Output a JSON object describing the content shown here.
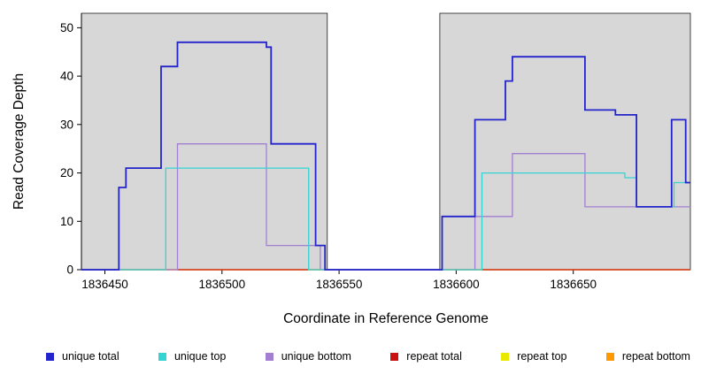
{
  "figure": {
    "background": "#ffffff",
    "plot_background": "#d7d7d7",
    "gap_background": "#ffffff"
  },
  "chart_data": {
    "type": "line",
    "step": true,
    "title": "",
    "xlabel": "Coordinate in Reference Genome",
    "ylabel": "Read Coverage Depth",
    "xlim": [
      1836440,
      1836700
    ],
    "ylim": [
      0,
      53
    ],
    "xticks": [
      1836450,
      1836500,
      1836550,
      1836600,
      1836650
    ],
    "yticks": [
      0,
      10,
      20,
      30,
      40,
      50
    ],
    "grid": false,
    "legend_position": "bottom",
    "shaded_regions": [
      {
        "from": 1836440,
        "to": 1836545,
        "color": "#d7d7d7"
      },
      {
        "from": 1836593,
        "to": 1836700,
        "color": "#d7d7d7"
      }
    ],
    "series": [
      {
        "name": "unique total",
        "color": "#2424cc",
        "points": [
          [
            1836440,
            0
          ],
          [
            1836456,
            17
          ],
          [
            1836459,
            21
          ],
          [
            1836474,
            42
          ],
          [
            1836481,
            47
          ],
          [
            1836519,
            46
          ],
          [
            1836521,
            26
          ],
          [
            1836540,
            5
          ],
          [
            1836544,
            0
          ],
          [
            1836594,
            11
          ],
          [
            1836608,
            31
          ],
          [
            1836621,
            39
          ],
          [
            1836624,
            44
          ],
          [
            1836655,
            33
          ],
          [
            1836668,
            32
          ],
          [
            1836677,
            13
          ],
          [
            1836692,
            31
          ],
          [
            1836698,
            18
          ]
        ]
      },
      {
        "name": "unique top",
        "color": "#35d4d4",
        "points": [
          [
            1836440,
            0
          ],
          [
            1836476,
            21
          ],
          [
            1836537,
            0
          ],
          [
            1836611,
            20
          ],
          [
            1836672,
            19
          ],
          [
            1836677,
            13
          ],
          [
            1836693,
            18
          ]
        ]
      },
      {
        "name": "unique bottom",
        "color": "#a37fd2",
        "points": [
          [
            1836440,
            0
          ],
          [
            1836481,
            26
          ],
          [
            1836519,
            5
          ],
          [
            1836542,
            0
          ],
          [
            1836608,
            11
          ],
          [
            1836624,
            24
          ],
          [
            1836655,
            13
          ]
        ]
      },
      {
        "name": "repeat total",
        "color": "#cc1111",
        "points": [
          [
            1836440,
            0
          ]
        ]
      },
      {
        "name": "repeat top",
        "color": "#e8e800",
        "points": [
          [
            1836440,
            0
          ]
        ]
      },
      {
        "name": "repeat bottom",
        "color": "#ff9900",
        "points": [
          [
            1836440,
            0
          ]
        ]
      }
    ]
  }
}
